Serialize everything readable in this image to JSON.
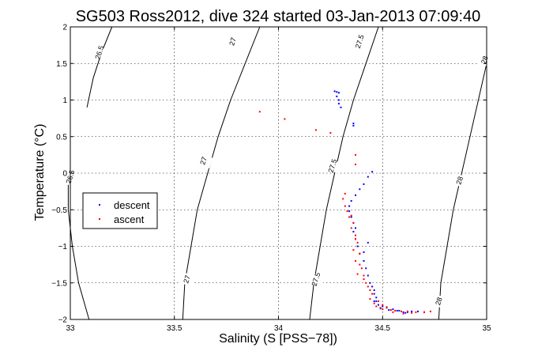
{
  "chart_data": {
    "type": "scatter",
    "title": "SG503 Ross2012, dive 324 started 03-Jan-2013 07:09:40",
    "xlabel": "Salinity (S [PSS−78])",
    "ylabel": "Temperature (°C)",
    "xlim": [
      33,
      35
    ],
    "ylim": [
      -2,
      2
    ],
    "grid": true,
    "legend_position": "left",
    "x_ticks": [
      "33",
      "33.5",
      "34",
      "34.5",
      "35"
    ],
    "y_ticks": [
      "−2",
      "−1.5",
      "−1",
      "−0.5",
      "0",
      "0.5",
      "1",
      "1.5",
      "2"
    ],
    "x_tick_values": [
      33,
      33.5,
      34,
      34.5,
      35
    ],
    "y_tick_values": [
      -2,
      -1.5,
      -1,
      -0.5,
      0,
      0.5,
      1,
      1.5,
      2
    ],
    "isopycnals": [
      {
        "label": "26.5",
        "color": "#000000",
        "points": [
          [
            33.09,
            -2.0
          ],
          [
            33.04,
            -1.5
          ],
          [
            33.01,
            -1.0
          ],
          [
            32.99,
            -0.5
          ],
          [
            32.99,
            -0.16
          ]
        ],
        "label_at": [
          33.0,
          -0.05
        ]
      },
      {
        "label": "26.5",
        "color": "#000000",
        "points": [
          [
            33.08,
            0.9
          ],
          [
            33.11,
            1.3
          ],
          [
            33.15,
            1.65
          ],
          [
            33.2,
            2.0
          ]
        ],
        "label_at": [
          33.14,
          1.65
        ]
      },
      {
        "label": "27",
        "color": "#000000",
        "points": [
          [
            33.54,
            -2.0
          ],
          [
            33.55,
            -1.5
          ],
          [
            33.58,
            -1.0
          ],
          [
            33.61,
            -0.5
          ],
          [
            33.66,
            0.0
          ],
          [
            33.71,
            0.5
          ],
          [
            33.77,
            1.0
          ],
          [
            33.84,
            1.5
          ],
          [
            33.91,
            2.0
          ]
        ],
        "label_at": [
          33.56,
          -1.45
        ]
      },
      {
        "label": "27",
        "color": "#000000",
        "label_at": [
          33.64,
          0.17
        ]
      },
      {
        "label": "27",
        "color": "#000000",
        "label_at": [
          33.78,
          1.8
        ]
      },
      {
        "label": "27.5",
        "color": "#000000",
        "points": [
          [
            34.15,
            -2.0
          ],
          [
            34.17,
            -1.5
          ],
          [
            34.2,
            -1.0
          ],
          [
            34.23,
            -0.5
          ],
          [
            34.27,
            0.0
          ],
          [
            34.31,
            0.5
          ],
          [
            34.36,
            1.0
          ],
          [
            34.42,
            1.5
          ],
          [
            34.48,
            2.0
          ]
        ],
        "label_at": [
          34.18,
          -1.45
        ]
      },
      {
        "label": "27.5",
        "color": "#000000",
        "label_at": [
          34.26,
          0.1
        ]
      },
      {
        "label": "27.5",
        "color": "#000000",
        "label_at": [
          34.39,
          1.8
        ]
      },
      {
        "label": "28",
        "color": "#000000",
        "points": [
          [
            34.77,
            -2.0
          ],
          [
            34.78,
            -1.5
          ],
          [
            34.81,
            -1.0
          ],
          [
            34.84,
            -0.5
          ],
          [
            34.88,
            0.0
          ],
          [
            34.92,
            0.5
          ],
          [
            34.96,
            1.0
          ],
          [
            35.0,
            1.5
          ]
        ],
        "label_at": [
          34.77,
          -1.75
        ]
      },
      {
        "label": "28",
        "color": "#000000",
        "label_at": [
          34.87,
          -0.1
        ]
      },
      {
        "label": "28",
        "color": "#000000",
        "label_at": [
          34.99,
          1.55
        ]
      }
    ],
    "series": [
      {
        "name": "descent",
        "color": "#0000ff",
        "marker": "dot",
        "points": [
          [
            34.27,
            1.12
          ],
          [
            34.28,
            1.11
          ],
          [
            34.29,
            1.1
          ],
          [
            34.28,
            1.05
          ],
          [
            34.29,
            1.0
          ],
          [
            34.29,
            0.95
          ],
          [
            34.3,
            0.9
          ],
          [
            34.36,
            0.68
          ],
          [
            34.36,
            0.65
          ],
          [
            34.45,
            0.02
          ],
          [
            34.43,
            -0.05
          ],
          [
            34.41,
            -0.15
          ],
          [
            34.39,
            -0.22
          ],
          [
            34.37,
            -0.3
          ],
          [
            34.35,
            -0.38
          ],
          [
            34.34,
            -0.45
          ],
          [
            34.34,
            -0.52
          ],
          [
            34.35,
            -0.6
          ],
          [
            34.36,
            -0.68
          ],
          [
            34.37,
            -0.75
          ],
          [
            34.36,
            -0.8
          ],
          [
            34.37,
            -0.9
          ],
          [
            34.38,
            -1.0
          ],
          [
            34.39,
            -1.1
          ],
          [
            34.41,
            -1.2
          ],
          [
            34.42,
            -1.3
          ],
          [
            34.43,
            -1.4
          ],
          [
            34.44,
            -1.5
          ],
          [
            34.45,
            -1.55
          ],
          [
            34.46,
            -1.6
          ],
          [
            34.46,
            -1.65
          ],
          [
            34.47,
            -1.7
          ],
          [
            34.47,
            -1.75
          ],
          [
            34.48,
            -1.8
          ],
          [
            34.5,
            -1.82
          ],
          [
            34.52,
            -1.84
          ],
          [
            34.55,
            -1.86
          ],
          [
            34.58,
            -1.88
          ],
          [
            34.6,
            -1.9
          ],
          [
            34.62,
            -1.9
          ],
          [
            34.64,
            -1.89
          ],
          [
            34.67,
            -1.89
          ],
          [
            34.7,
            -1.9
          ],
          [
            34.43,
            -0.95
          ],
          [
            34.41,
            -1.08
          ],
          [
            34.46,
            -1.75
          ],
          [
            34.49,
            -1.85
          ],
          [
            34.53,
            -1.87
          ],
          [
            34.57,
            -1.88
          ],
          [
            34.61,
            -1.91
          ]
        ]
      },
      {
        "name": "ascent",
        "color": "#ff0000",
        "marker": "dot",
        "points": [
          [
            33.91,
            0.84
          ],
          [
            34.03,
            0.74
          ],
          [
            34.18,
            0.59
          ],
          [
            34.25,
            0.55
          ],
          [
            34.37,
            0.25
          ],
          [
            34.37,
            0.12
          ],
          [
            34.32,
            -0.28
          ],
          [
            34.31,
            -0.35
          ],
          [
            34.32,
            -0.45
          ],
          [
            34.33,
            -0.52
          ],
          [
            34.34,
            -0.6
          ],
          [
            34.36,
            -0.68
          ],
          [
            34.35,
            -0.75
          ],
          [
            34.37,
            -0.85
          ],
          [
            34.38,
            -0.95
          ],
          [
            34.36,
            -1.05
          ],
          [
            34.39,
            -1.1
          ],
          [
            34.37,
            -1.2
          ],
          [
            34.4,
            -1.3
          ],
          [
            34.38,
            -1.38
          ],
          [
            34.41,
            -1.45
          ],
          [
            34.43,
            -1.55
          ],
          [
            34.44,
            -1.6
          ],
          [
            34.42,
            -1.5
          ],
          [
            34.45,
            -1.65
          ],
          [
            34.44,
            -1.72
          ],
          [
            34.46,
            -1.78
          ],
          [
            34.47,
            -1.82
          ],
          [
            34.49,
            -1.84
          ],
          [
            34.5,
            -1.86
          ],
          [
            34.52,
            -1.83
          ],
          [
            34.54,
            -1.87
          ],
          [
            34.56,
            -1.88
          ],
          [
            34.59,
            -1.89
          ],
          [
            34.62,
            -1.89
          ],
          [
            34.66,
            -1.9
          ],
          [
            34.7,
            -1.9
          ],
          [
            34.73,
            -1.89
          ],
          [
            34.35,
            -0.58
          ],
          [
            34.37,
            -0.9
          ],
          [
            34.39,
            -1.25
          ],
          [
            34.41,
            -1.4
          ],
          [
            34.48,
            -1.75
          ],
          [
            34.5,
            -1.8
          ],
          [
            34.55,
            -1.9
          ],
          [
            34.6,
            -1.92
          ],
          [
            34.64,
            -1.91
          ]
        ]
      }
    ]
  }
}
